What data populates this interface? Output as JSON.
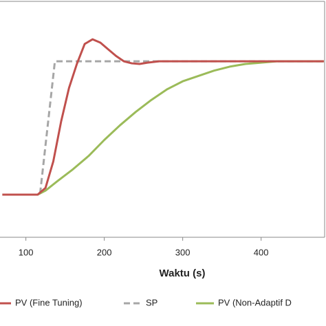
{
  "chart_data": {
    "type": "line",
    "x_label": "Waktu (s)",
    "xlim": [
      67,
      481
    ],
    "xticks": [
      100,
      200,
      300,
      400
    ],
    "ylim": [
      -0.32,
      1.46
    ],
    "series": [
      {
        "name": "PV (Fine Tuning)",
        "color": "#c0504d",
        "dash": false,
        "x": [
          70,
          115,
          125,
          135,
          145,
          155,
          165,
          175,
          185,
          195,
          205,
          215,
          225,
          235,
          245,
          255,
          270,
          480
        ],
        "values": [
          0,
          0,
          0.05,
          0.25,
          0.55,
          0.8,
          0.98,
          1.13,
          1.165,
          1.14,
          1.09,
          1.04,
          1.0,
          0.985,
          0.98,
          0.99,
          1.0,
          1.0
        ]
      },
      {
        "name": "SP",
        "color": "#a6a6a6",
        "dash": true,
        "x": [
          70,
          118,
          137,
          480
        ],
        "values": [
          0,
          0,
          1,
          1
        ]
      },
      {
        "name": "PV (Non-Adaptif D",
        "color": "#9bbb59",
        "dash": false,
        "x": [
          70,
          115,
          125,
          140,
          160,
          180,
          200,
          220,
          240,
          260,
          280,
          300,
          320,
          340,
          360,
          380,
          400,
          420,
          480
        ],
        "values": [
          0,
          0,
          0.03,
          0.1,
          0.19,
          0.29,
          0.41,
          0.52,
          0.62,
          0.71,
          0.79,
          0.85,
          0.89,
          0.93,
          0.96,
          0.98,
          0.99,
          1.0,
          1.0
        ]
      }
    ]
  }
}
